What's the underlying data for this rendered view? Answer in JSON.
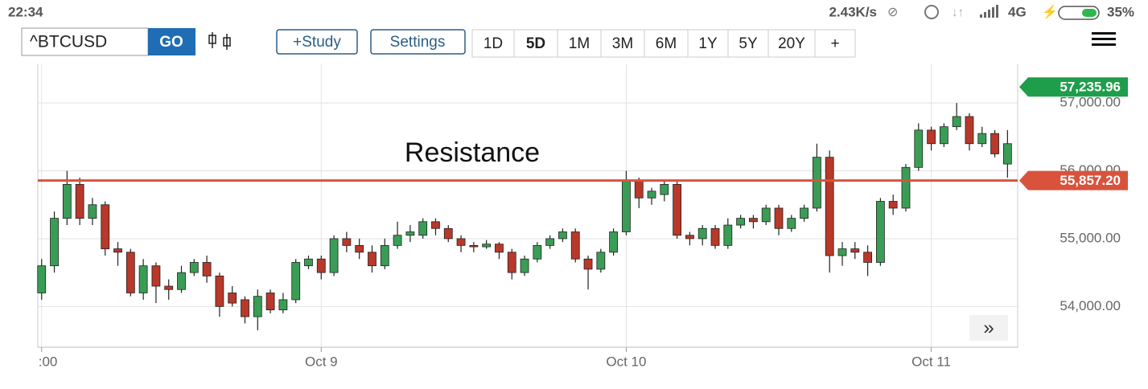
{
  "status_bar": {
    "time": "22:34",
    "speed": "2.43K/s",
    "network": "4G",
    "battery": "35%"
  },
  "toolbar": {
    "symbol": "^BTCUSD",
    "go": "GO",
    "study": "+Study",
    "settings": "Settings",
    "ranges": [
      "1D",
      "5D",
      "1M",
      "3M",
      "6M",
      "1Y",
      "5Y",
      "20Y",
      "+"
    ],
    "active_range": "5D"
  },
  "chart_data": {
    "type": "candlestick",
    "x": [
      0,
      1,
      2,
      3,
      4,
      5,
      6,
      7,
      8,
      9,
      10,
      11,
      12,
      13,
      14,
      15,
      16,
      17,
      18,
      19,
      20,
      21,
      22,
      23,
      24,
      25,
      26,
      27,
      28,
      29,
      30,
      31,
      32,
      33,
      34,
      35,
      36,
      37,
      38,
      39,
      40,
      41,
      42,
      43,
      44,
      45,
      46,
      47,
      48,
      49,
      50,
      51,
      52,
      53,
      54,
      55,
      56,
      57,
      58,
      59,
      60,
      61,
      62,
      63,
      64,
      65,
      66,
      67,
      68,
      69,
      70,
      71,
      72,
      73,
      74,
      75,
      76
    ],
    "open": [
      54200,
      54600,
      55300,
      55800,
      55300,
      55500,
      54850,
      54800,
      54200,
      54600,
      54300,
      54250,
      54500,
      54650,
      54450,
      54200,
      54100,
      53850,
      54200,
      53950,
      54100,
      54600,
      54700,
      54500,
      55000,
      54900,
      54800,
      54600,
      54900,
      55050,
      55050,
      55250,
      55150,
      55000,
      54900,
      54880,
      54920,
      54800,
      54500,
      54700,
      54900,
      55000,
      55100,
      54700,
      54550,
      54800,
      55100,
      55850,
      55600,
      55650,
      55800,
      55050,
      55000,
      55150,
      54900,
      55200,
      55300,
      55250,
      55450,
      55150,
      55300,
      55450,
      56200,
      54750,
      54850,
      54800,
      54650,
      55550,
      55450,
      56050,
      56600,
      56400,
      56650,
      56800,
      56400,
      56550,
      56100
    ],
    "high": [
      54700,
      55400,
      56000,
      55900,
      55600,
      55550,
      54950,
      54850,
      54700,
      54650,
      54400,
      54600,
      54700,
      54750,
      54500,
      54300,
      54150,
      54250,
      54250,
      54200,
      54700,
      54750,
      54750,
      55050,
      55100,
      55000,
      54900,
      55000,
      55250,
      55200,
      55300,
      55300,
      55200,
      55050,
      54950,
      54980,
      54950,
      54850,
      54750,
      54950,
      55050,
      55150,
      55150,
      54750,
      54850,
      55150,
      56000,
      55900,
      55750,
      55850,
      55850,
      55100,
      55200,
      55200,
      55300,
      55350,
      55350,
      55500,
      55500,
      55350,
      55500,
      56400,
      56300,
      54950,
      54950,
      54900,
      55600,
      55650,
      56100,
      56700,
      56650,
      56700,
      57000,
      56850,
      56650,
      56600,
      56600
    ],
    "low": [
      54100,
      54500,
      55200,
      55200,
      55200,
      54750,
      54600,
      54150,
      54100,
      54050,
      54100,
      54200,
      54450,
      54350,
      53850,
      54000,
      53750,
      53650,
      53900,
      53900,
      54050,
      54550,
      54400,
      54450,
      54800,
      54700,
      54500,
      54550,
      54850,
      54950,
      55000,
      55050,
      54950,
      54800,
      54800,
      54850,
      54700,
      54400,
      54450,
      54650,
      54850,
      54950,
      54650,
      54250,
      54500,
      54750,
      55050,
      55450,
      55500,
      55550,
      55000,
      54900,
      54900,
      54850,
      54850,
      55150,
      55150,
      55200,
      55050,
      55100,
      55250,
      55400,
      54500,
      54600,
      54700,
      54450,
      54600,
      55350,
      55400,
      56000,
      56300,
      56350,
      56600,
      56300,
      56350,
      56200,
      55900
    ],
    "close": [
      54600,
      55300,
      55800,
      55300,
      55500,
      54850,
      54800,
      54200,
      54600,
      54300,
      54250,
      54500,
      54650,
      54450,
      54000,
      54050,
      53850,
      54150,
      53950,
      54100,
      54650,
      54700,
      54500,
      55000,
      54900,
      54800,
      54600,
      54900,
      55050,
      55100,
      55250,
      55150,
      55000,
      54900,
      54880,
      54920,
      54800,
      54500,
      54700,
      54900,
      55000,
      55100,
      54700,
      54550,
      54800,
      55100,
      55850,
      55600,
      55700,
      55800,
      55050,
      55000,
      55150,
      54900,
      55200,
      55300,
      55250,
      55450,
      55150,
      55300,
      55450,
      56200,
      54750,
      54850,
      54800,
      54650,
      55550,
      55450,
      56050,
      56600,
      56400,
      56650,
      56800,
      56400,
      56550,
      56250,
      56400
    ],
    "up_color": "#3a9d55",
    "down_color": "#b8382a",
    "xlim": [
      -0.3,
      76.8
    ],
    "xticks": [
      {
        "value": 0,
        "label": ":00"
      },
      {
        "value": 22,
        "label": "Oct 9"
      },
      {
        "value": 46,
        "label": "Oct 10"
      },
      {
        "value": 70,
        "label": "Oct 11"
      }
    ],
    "ylim": [
      53400,
      57570
    ],
    "yticks": [
      {
        "value": 54000,
        "label": "54,000.00"
      },
      {
        "value": 55000,
        "label": "55,000.00"
      },
      {
        "value": 56000,
        "label": "56,000.00"
      },
      {
        "value": 57000,
        "label": "57,000.00"
      }
    ],
    "grid": true,
    "resistance": {
      "text": "Resistance",
      "value": 55857.2,
      "label": "55,857.20",
      "color": "#d9533c"
    },
    "last_price": {
      "value": 57235.96,
      "label": "57,235.96",
      "color": "#1e9e4a"
    }
  }
}
